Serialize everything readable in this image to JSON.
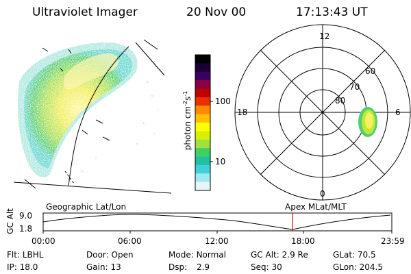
{
  "header": {
    "instrument": "Ultraviolet Imager",
    "date": "20 Nov 00",
    "time": "17:13:43 UT"
  },
  "colorbar": {
    "label": "photon cm",
    "exp1": "-2",
    "s": "s",
    "exp2": "-1",
    "ticks": [
      "100",
      "10"
    ],
    "colors": [
      "#000000",
      "#1a0033",
      "#3a0060",
      "#8a0040",
      "#c00000",
      "#e83000",
      "#ff8a00",
      "#ffc000",
      "#ffff00",
      "#d8f000",
      "#a0e040",
      "#40d060",
      "#20c0a0",
      "#40d0d8",
      "#a0e8f0",
      "#e8f4f8"
    ]
  },
  "polar": {
    "mlt_labels": {
      "top": "12",
      "left": "18",
      "right": "6",
      "bottom": "0"
    },
    "lat_labels": [
      "60",
      "70",
      "80"
    ]
  },
  "orbit_panel": {
    "ylabel": "GC Alt",
    "ytick_top": "9.0",
    "ytick_bottom": "1.8",
    "left_title": "Geographic Lat/Lon",
    "right_title": "Apex MLat/MLT",
    "xticks": [
      "00:00",
      "06:00",
      "12:00",
      "18:00",
      "23:59"
    ],
    "marker_color": "#e00000"
  },
  "info": {
    "row1": [
      {
        "label": "Flt:",
        "value": "LBHL"
      },
      {
        "label": "Door:",
        "value": "Open"
      },
      {
        "label": "Mode:",
        "value": "Normal"
      },
      {
        "label": "GC Alt:",
        "value": "2.9 Re"
      },
      {
        "label": "GLat:",
        "value": "70.5"
      }
    ],
    "row2": [
      {
        "label": "IP:",
        "value": "18.0"
      },
      {
        "label": "Gain:",
        "value": "13"
      },
      {
        "label": "Dsp:",
        "value": "2.9"
      },
      {
        "label": "Seq:",
        "value": "30"
      },
      {
        "label": "GLon:",
        "value": "204.5"
      }
    ]
  }
}
